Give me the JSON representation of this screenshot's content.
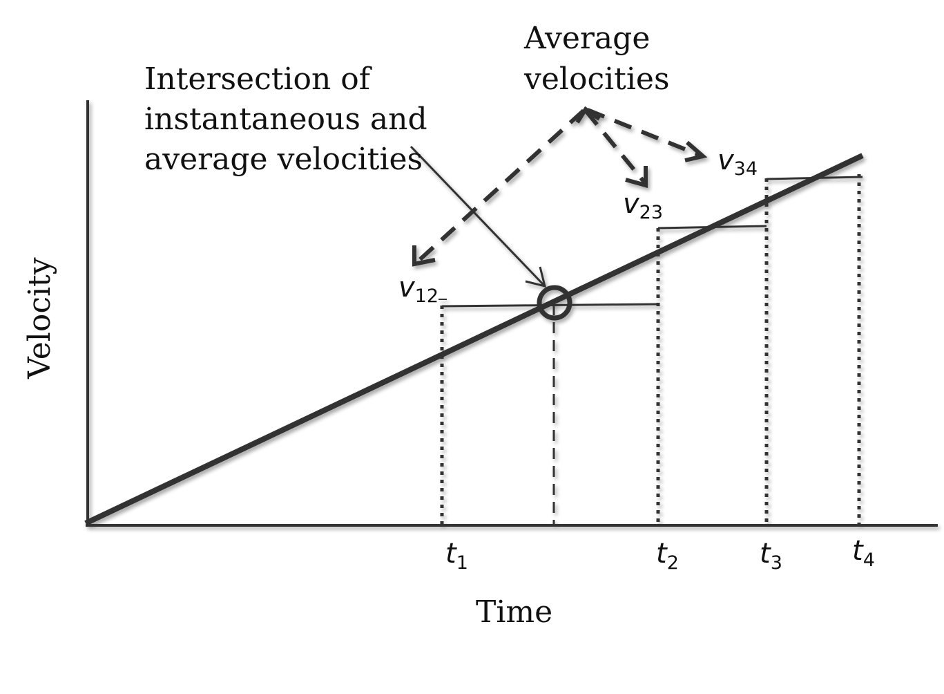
{
  "diagram": {
    "axes": {
      "x_label": "Time",
      "y_label": "Velocity"
    },
    "annotations": {
      "intersection_lines": [
        "Intersection of",
        "instantaneous and",
        "average velocities"
      ],
      "average_lines": [
        "Average",
        "velocities"
      ]
    },
    "velocity_labels": [
      {
        "symbol": "v",
        "subscript": "12"
      },
      {
        "symbol": "v",
        "subscript": "23"
      },
      {
        "symbol": "v",
        "subscript": "34"
      }
    ],
    "time_labels": [
      {
        "symbol": "t",
        "subscript": "1"
      },
      {
        "symbol": "t",
        "subscript": "2"
      },
      {
        "symbol": "t",
        "subscript": "3"
      },
      {
        "symbol": "t",
        "subscript": "4"
      }
    ],
    "colors": {
      "line": "#333333",
      "text": "#111111",
      "background": "#ffffff"
    }
  }
}
